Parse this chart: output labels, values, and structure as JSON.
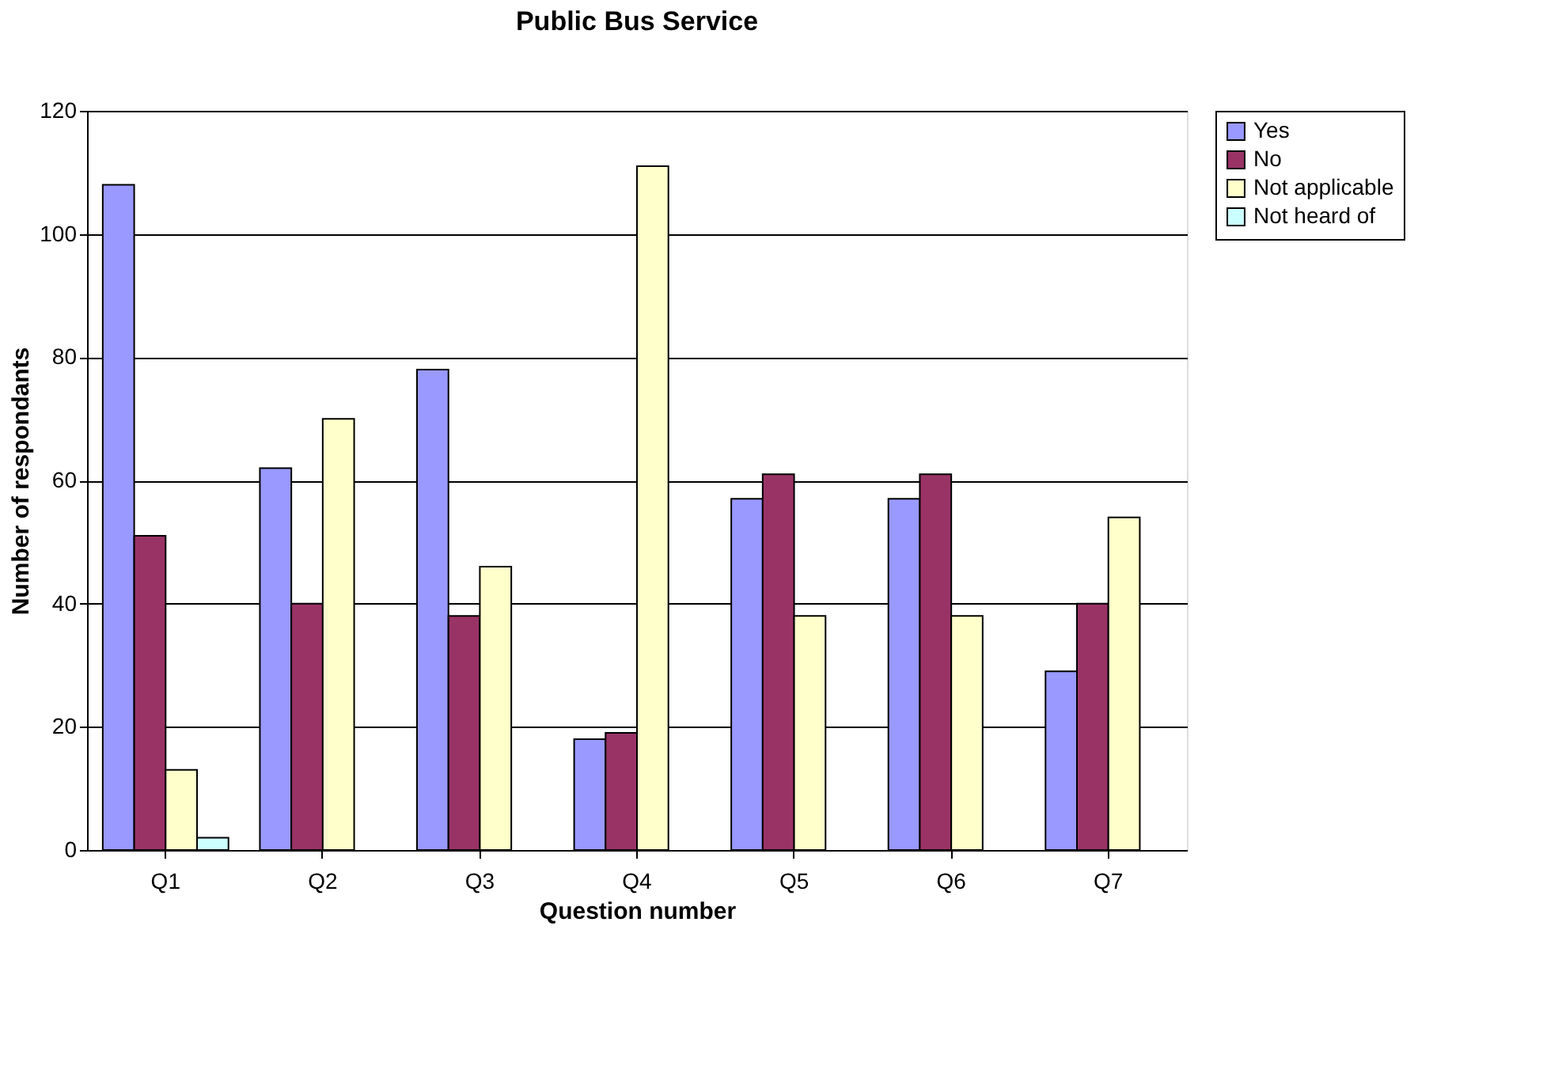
{
  "chart_data": {
    "type": "bar",
    "title": "Public Bus Service",
    "xlabel": "Question number",
    "ylabel": "Number of respondants",
    "categories": [
      "Q1",
      "Q2",
      "Q3",
      "Q4",
      "Q5",
      "Q6",
      "Q7"
    ],
    "series": [
      {
        "name": "Yes",
        "color": "#9999ff",
        "values": [
          108,
          62,
          78,
          18,
          57,
          57,
          29
        ]
      },
      {
        "name": "No",
        "color": "#993366",
        "values": [
          51,
          40,
          38,
          19,
          61,
          61,
          40
        ]
      },
      {
        "name": "Not applicable",
        "color": "#ffffcc",
        "values": [
          13,
          70,
          46,
          111,
          38,
          38,
          54
        ]
      },
      {
        "name": "Not heard of",
        "color": "#ccffff",
        "values": [
          2,
          null,
          null,
          null,
          null,
          null,
          null
        ]
      }
    ],
    "ylim": [
      0,
      120
    ],
    "yticks": [
      0,
      20,
      40,
      60,
      80,
      100,
      120
    ],
    "grid": "y",
    "legend": "right"
  }
}
